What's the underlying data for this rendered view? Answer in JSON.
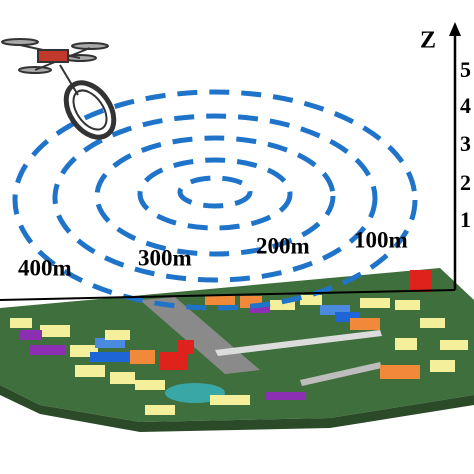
{
  "axis": {
    "label": "Z",
    "ticks": [
      "5",
      "4",
      "3",
      "2",
      "1"
    ]
  },
  "distances": [
    "400m",
    "300m",
    "200m",
    "100m"
  ]
}
